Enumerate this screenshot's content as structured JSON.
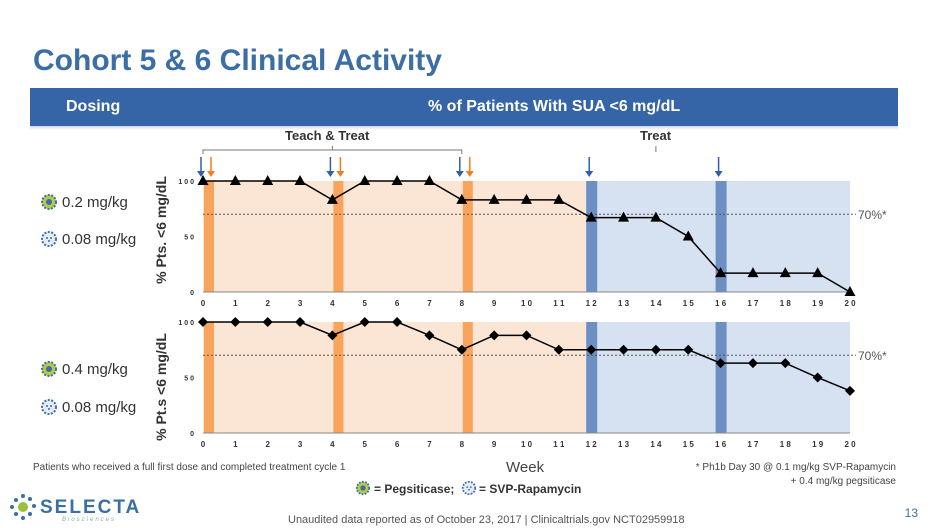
{
  "title": "Cohort 5 & 6 Clinical Activity",
  "header": {
    "dosing": "Dosing",
    "metric": "% of Patients With SUA <6 mg/dL"
  },
  "phases": {
    "teach": "Teach & Treat",
    "treat": "Treat"
  },
  "cohorts": [
    {
      "dose_a": "0.2 mg/kg",
      "dose_b": "0.08 mg/kg",
      "ylabel": "% Pts. <6 mg/dL",
      "threshold_label": "70%*"
    },
    {
      "dose_a": "0.4 mg/kg",
      "dose_b": "0.08 mg/kg",
      "ylabel": "% Pt.s <6 mg/dL",
      "threshold_label": "70%*"
    }
  ],
  "footnote_left": "Patients who received a full first dose and completed treatment cycle 1",
  "xlabel": "Week",
  "footnote_right": [
    "* Ph1b Day 30 @ 0.1 mg/kg SVP-Rapamycin",
    "+ 0.4 mg/kg pegsiticase"
  ],
  "legend": {
    "peg": "= Pegsiticase;",
    "svp": "= SVP-Rapamycin"
  },
  "logo": {
    "text": "SELECTA",
    "sub": "Biosciences"
  },
  "footer": "Unaudited data reported as of October 23, 2017 | Clinicaltrials.gov NCT02959918",
  "page_number": "13",
  "colors": {
    "title": "#3a6ea5",
    "band": "#3565a6",
    "teach_bg": "#fbe5d4",
    "treat_bg": "#d6e1f1",
    "orange_dose": "#f9a45c",
    "blue_dose": "#6c8fc4",
    "arrow_blue": "#2f5fa8",
    "arrow_orange": "#f07d1e"
  },
  "chart_data": [
    {
      "type": "line",
      "x": [
        0,
        1,
        2,
        3,
        4,
        5,
        6,
        7,
        8,
        9,
        10,
        11,
        12,
        13,
        14,
        15,
        16,
        17,
        18,
        19,
        20
      ],
      "series": [
        {
          "marker": "triangle",
          "values": [
            100,
            100,
            100,
            100,
            83,
            100,
            100,
            100,
            83,
            83,
            83,
            83,
            67,
            67,
            67,
            50,
            17,
            17,
            17,
            17,
            0
          ]
        }
      ],
      "xlim": [
        0,
        20
      ],
      "ylim": [
        0,
        100
      ],
      "yticks": [
        0,
        50,
        100
      ],
      "xticks": [
        "0",
        "1",
        "2",
        "3",
        "4",
        "5",
        "6",
        "7",
        "8",
        "9",
        "1 0",
        "1 1",
        "1 2",
        "1 3",
        "1 4",
        "1 5",
        "1 6",
        "1 7",
        "1 8",
        "1 9",
        "2 0"
      ],
      "ytick_labels": [
        "0",
        "5 0",
        "1 0 0"
      ],
      "threshold": 70,
      "teach_weeks": [
        0,
        8
      ],
      "treat_weeks": [
        12,
        20
      ],
      "peg_dose_weeks": [
        0,
        4,
        8
      ],
      "svp_dose_weeks": [
        12,
        16
      ],
      "arrows_blue": [
        0,
        4,
        8,
        12,
        16
      ],
      "arrows_orange": [
        0,
        4,
        8
      ]
    },
    {
      "type": "line",
      "x": [
        0,
        1,
        2,
        3,
        4,
        5,
        6,
        7,
        8,
        9,
        10,
        11,
        12,
        13,
        14,
        15,
        16,
        17,
        18,
        19,
        20
      ],
      "series": [
        {
          "marker": "diamond",
          "values": [
            100,
            100,
            100,
            100,
            88,
            100,
            100,
            88,
            75,
            88,
            88,
            75,
            75,
            75,
            75,
            75,
            63,
            63,
            63,
            50,
            38
          ]
        }
      ],
      "xlim": [
        0,
        20
      ],
      "ylim": [
        0,
        100
      ],
      "yticks": [
        0,
        50,
        100
      ],
      "xticks": [
        "0",
        "1",
        "2",
        "3",
        "4",
        "5",
        "6",
        "7",
        "8",
        "9",
        "1 0",
        "1 1",
        "1 2",
        "1 3",
        "1 4",
        "1 5",
        "1 6",
        "1 7",
        "1 8",
        "1 9",
        "2 0"
      ],
      "ytick_labels": [
        "0",
        "5 0",
        "1 0 0"
      ],
      "threshold": 70,
      "teach_weeks": [
        0,
        8
      ],
      "treat_weeks": [
        12,
        20
      ],
      "peg_dose_weeks": [
        0,
        4,
        8
      ],
      "svp_dose_weeks": [
        12,
        16
      ],
      "arrows_blue": [],
      "arrows_orange": []
    }
  ]
}
